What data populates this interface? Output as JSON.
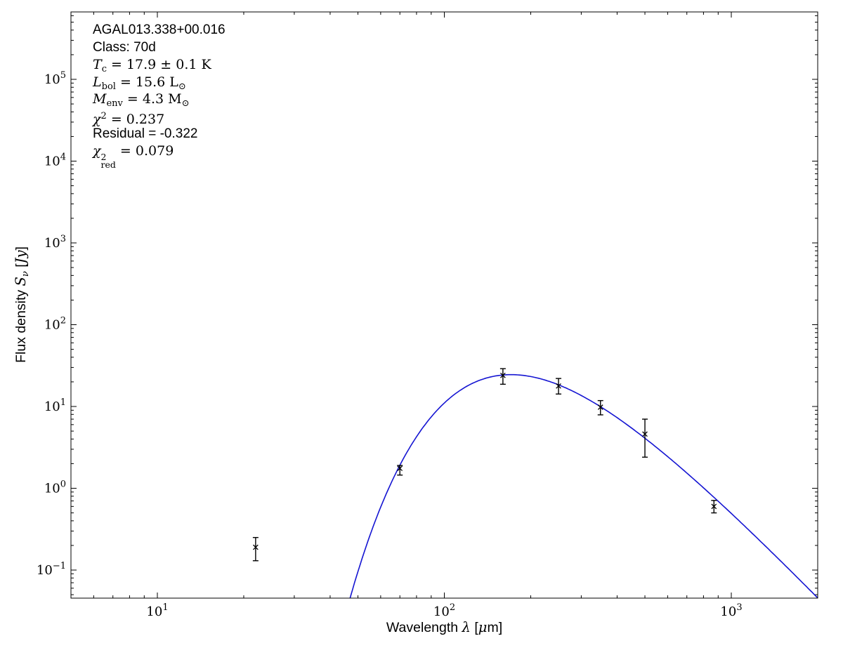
{
  "figure": {
    "background_color": "#ffffff",
    "frame_color": "#000000",
    "curve_color": "#1414d2",
    "marker_color": "#000000",
    "annotation_lines": [
      {
        "parts": [
          {
            "t": "AGAL013.338+00.016",
            "s": "sans"
          }
        ]
      },
      {
        "parts": [
          {
            "t": "Class: 70d",
            "s": "sans"
          }
        ]
      },
      {
        "parts": [
          {
            "t": "T",
            "s": "it"
          },
          {
            "t": "c",
            "s": "sub"
          },
          {
            "t": " = 17.9 ± 0.1 K",
            "s": "rm"
          }
        ]
      },
      {
        "parts": [
          {
            "t": "L",
            "s": "it"
          },
          {
            "t": "bol",
            "s": "sub"
          },
          {
            "t": " = 15.6 L",
            "s": "rm"
          },
          {
            "t": "⊙",
            "s": "sub"
          }
        ]
      },
      {
        "parts": [
          {
            "t": "M",
            "s": "it"
          },
          {
            "t": "env",
            "s": "sub"
          },
          {
            "t": " = 4.3 M",
            "s": "rm"
          },
          {
            "t": "⊙",
            "s": "sub"
          }
        ]
      },
      {
        "parts": [
          {
            "t": "χ",
            "s": "it"
          },
          {
            "t": "2",
            "s": "sup"
          },
          {
            "t": " = 0.237",
            "s": "rm"
          }
        ]
      },
      {
        "parts": [
          {
            "t": "Residual = -0.322",
            "s": "sans"
          }
        ]
      },
      {
        "parts": [
          {
            "t": "χ",
            "s": "it"
          },
          {
            "s": "stack",
            "sup": "2",
            "sub": "red"
          },
          {
            "t": " = 0.079",
            "s": "rm"
          }
        ]
      }
    ],
    "xlabel_parts": [
      {
        "t": "Wavelength ",
        "s": "sans"
      },
      {
        "t": "λ",
        "s": "it"
      },
      {
        "t": " [",
        "s": "sans"
      },
      {
        "t": "μ",
        "s": "it"
      },
      {
        "t": "m",
        "s": "sans"
      },
      {
        "t": "]",
        "s": "sans"
      }
    ],
    "ylabel_parts": [
      {
        "t": "Flux density ",
        "s": "sans"
      },
      {
        "t": "S",
        "s": "it"
      },
      {
        "t": "ν",
        "s": "subit"
      },
      {
        "t": " [",
        "s": "sans"
      },
      {
        "t": "Jy",
        "s": "it"
      },
      {
        "t": "]",
        "s": "sans"
      }
    ]
  },
  "chart_data": {
    "type": "line",
    "scale": "log-log",
    "title": "",
    "xlabel": "Wavelength λ [μm]",
    "ylabel": "Flux density S_ν [Jy]",
    "xlim": [
      5,
      2000
    ],
    "ylim": [
      0.045,
      670000
    ],
    "x_major_ticks": [
      10,
      100,
      1000
    ],
    "y_major_ticks": [
      0.1,
      1,
      10,
      100,
      1000,
      10000,
      100000
    ],
    "grid": false,
    "legend": false,
    "annotation_text": [
      "AGAL013.338+00.016",
      "Class: 70d",
      "T_c = 17.9 ± 0.1 K",
      "L_bol = 15.6 L_⊙",
      "M_env = 4.3 M_⊙",
      "χ^2 = 0.237",
      "Residual = -0.322",
      "χ^2_red = 0.079"
    ],
    "series": [
      {
        "name": "greybody-fit-curve",
        "style": "solid blue line",
        "model": "modified_blackbody",
        "T_K": 17.9,
        "beta": 1.75,
        "peak_flux_jy": 24.5,
        "lambda_range_um": [
          40,
          2000
        ]
      },
      {
        "name": "photometry-points",
        "style": "black x markers with error bars",
        "points": [
          {
            "wavelength_um": 22,
            "flux_jy": 0.19,
            "flux_hi_jy": 0.25,
            "flux_lo_jy": 0.13
          },
          {
            "wavelength_um": 70,
            "flux_jy": 1.75,
            "flux_hi_jy": 1.9,
            "flux_lo_jy": 1.45
          },
          {
            "wavelength_um": 160,
            "flux_jy": 24.0,
            "flux_hi_jy": 29.0,
            "flux_lo_jy": 18.7
          },
          {
            "wavelength_um": 250,
            "flux_jy": 17.8,
            "flux_hi_jy": 22.0,
            "flux_lo_jy": 14.2
          },
          {
            "wavelength_um": 350,
            "flux_jy": 9.8,
            "flux_hi_jy": 11.8,
            "flux_lo_jy": 7.9
          },
          {
            "wavelength_um": 500,
            "flux_jy": 4.6,
            "flux_hi_jy": 7.0,
            "flux_lo_jy": 2.4
          },
          {
            "wavelength_um": 870,
            "flux_jy": 0.6,
            "flux_hi_jy": 0.71,
            "flux_lo_jy": 0.5
          }
        ]
      }
    ]
  }
}
